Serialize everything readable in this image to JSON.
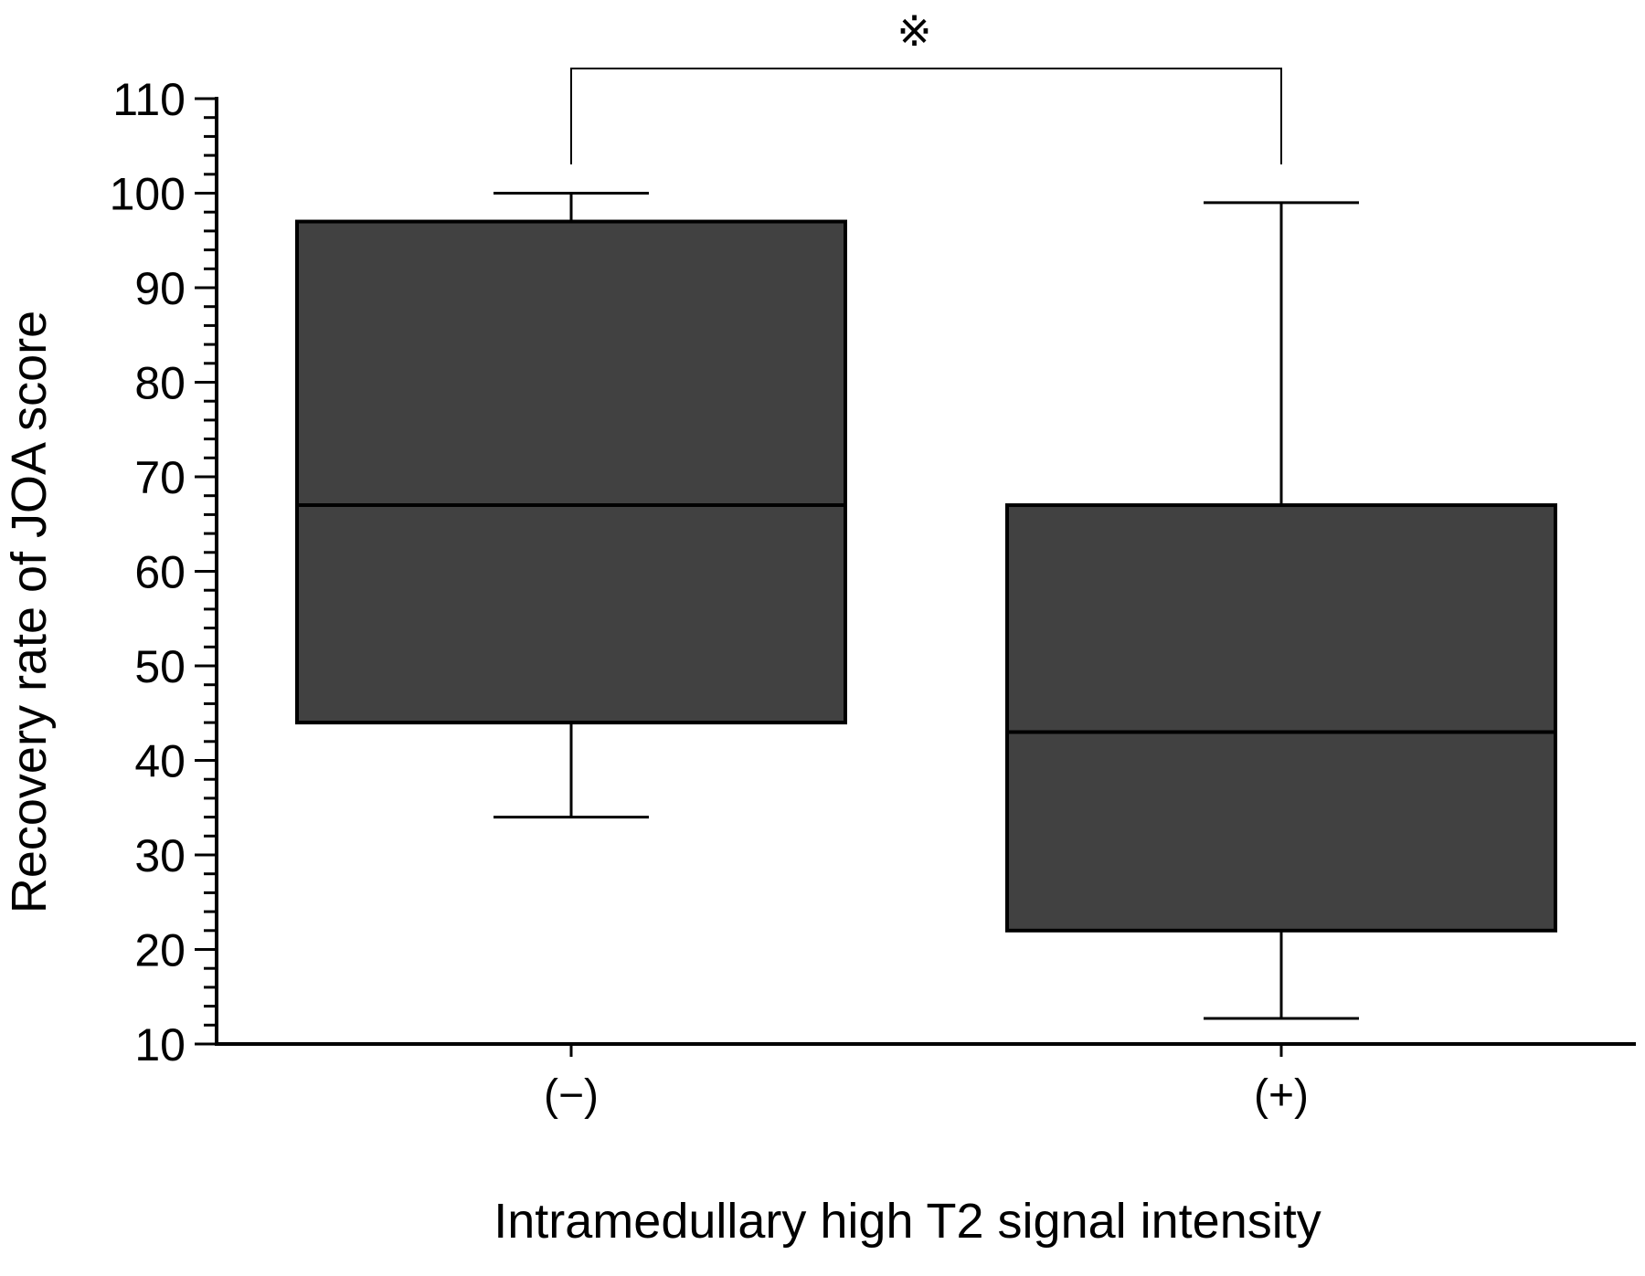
{
  "chart_data": {
    "type": "box",
    "ylabel": "Recovery rate of JOA score",
    "xlabel": "Intramedullary high T2 signal intensity",
    "ylim": [
      10,
      110
    ],
    "yticks": [
      10,
      20,
      30,
      40,
      50,
      60,
      70,
      80,
      90,
      100,
      110
    ],
    "yminor_step": 2,
    "categories": [
      "(−)",
      "(+)"
    ],
    "boxes": [
      {
        "category": "(−)",
        "min": 34,
        "q1": 44,
        "median": 67,
        "q3": 97,
        "max": 100
      },
      {
        "category": "(+)",
        "min": 12.7,
        "q1": 22,
        "median": 43,
        "q3": 67,
        "max": 99
      }
    ],
    "significance": {
      "from": 0,
      "to": 1,
      "label": "※"
    },
    "box_color": "#414141",
    "grid": false
  }
}
